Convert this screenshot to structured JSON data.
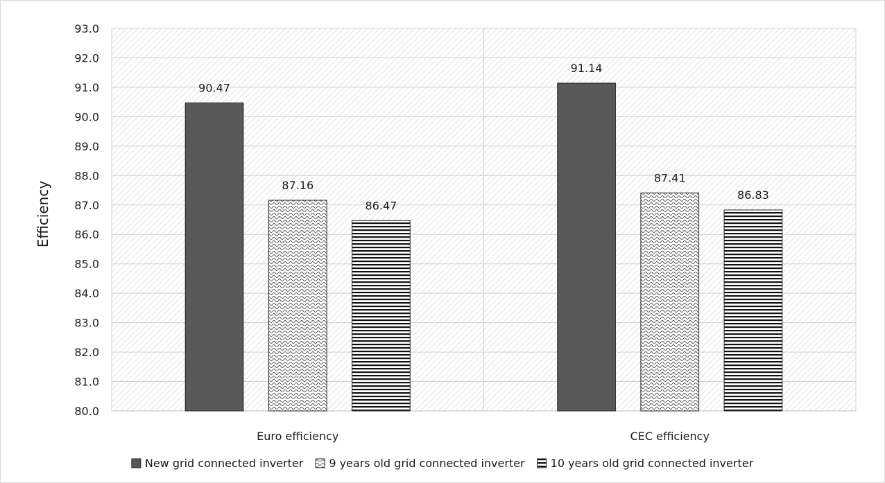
{
  "chart_data": {
    "type": "bar",
    "title": "",
    "xlabel": "",
    "ylabel": "Efficiency",
    "ylim": [
      80.0,
      93.0
    ],
    "ytick_step": 1.0,
    "yticks": [
      "80.0",
      "81.0",
      "82.0",
      "83.0",
      "84.0",
      "85.0",
      "86.0",
      "87.0",
      "88.0",
      "89.0",
      "90.0",
      "91.0",
      "92.0",
      "93.0"
    ],
    "categories": [
      "Euro efficiency",
      "CEC efficiency"
    ],
    "series": [
      {
        "name": "New grid connected inverter",
        "values": [
          90.47,
          91.14
        ],
        "labels": [
          "90.47",
          "91.14"
        ],
        "fill": "solid-dark",
        "color": "#595959"
      },
      {
        "name": "9 years old grid connected inverter",
        "values": [
          87.16,
          87.41
        ],
        "labels": [
          "87.16",
          "87.41"
        ],
        "fill": "wave-pattern",
        "color": "#ffffff"
      },
      {
        "name": "10 years old grid connected inverter",
        "values": [
          86.47,
          86.83
        ],
        "labels": [
          "86.47",
          "86.83"
        ],
        "fill": "horizontal-stripes",
        "color": "#ffffff"
      }
    ],
    "grid": true,
    "legend_position": "bottom",
    "plot_background": "diagonal-hatch"
  }
}
